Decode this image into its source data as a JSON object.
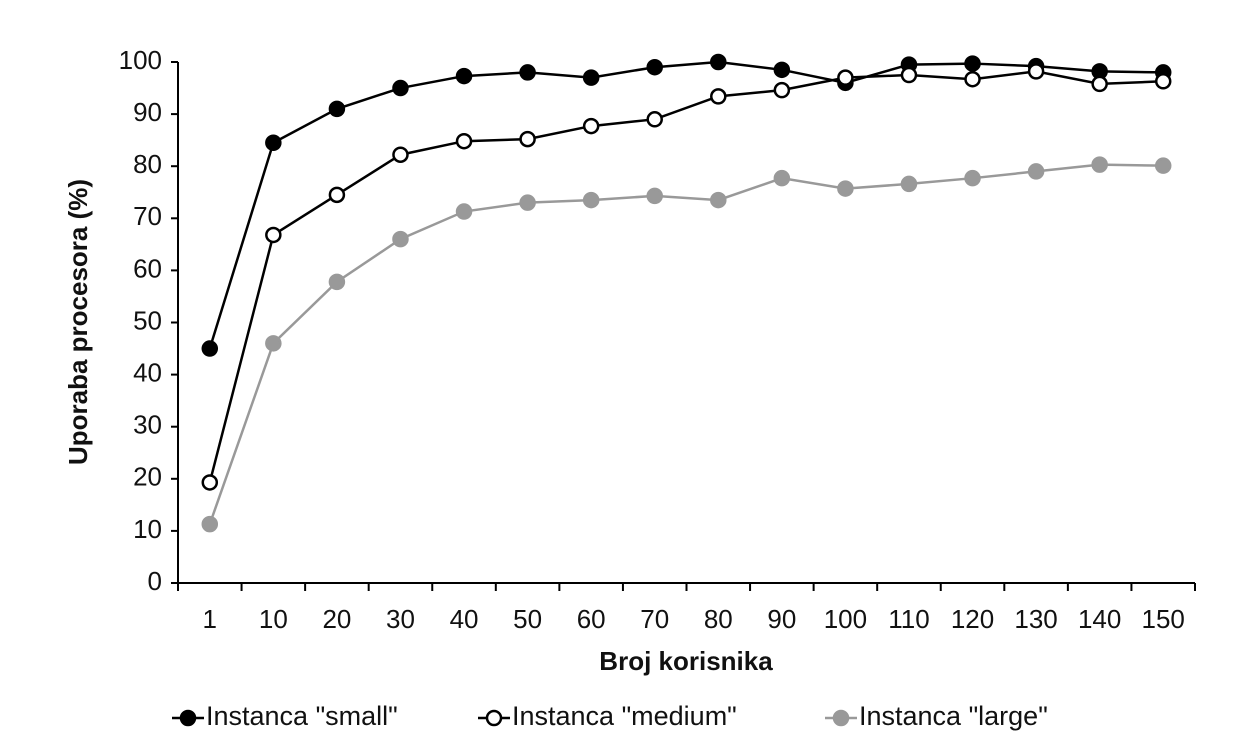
{
  "chart_data": {
    "type": "line",
    "x_label": "Broj korisnika",
    "y_label": "Uporaba procesora (%)",
    "categories": [
      "1",
      "10",
      "20",
      "30",
      "40",
      "50",
      "60",
      "70",
      "80",
      "90",
      "100",
      "110",
      "120",
      "130",
      "140",
      "150"
    ],
    "series": [
      {
        "name": "Instanca \"small\"",
        "color": "#000000",
        "marker_fill": "#000000",
        "values": [
          45,
          84.5,
          91,
          95,
          97.3,
          98,
          97,
          99,
          100,
          98.5,
          96,
          99.5,
          99.7,
          99.2,
          98.2,
          98
        ]
      },
      {
        "name": "Instanca \"medium\"",
        "color": "#000000",
        "marker_fill": "#ffffff",
        "values": [
          19.3,
          66.8,
          74.5,
          82.2,
          84.8,
          85.2,
          87.7,
          89,
          93.4,
          94.6,
          97,
          97.5,
          96.7,
          98.2,
          95.8,
          96.3
        ]
      },
      {
        "name": "Instanca \"large\"",
        "color": "#999999",
        "marker_fill": "#999999",
        "values": [
          11.3,
          46,
          57.8,
          66,
          71.3,
          73,
          73.5,
          74.3,
          73.5,
          77.7,
          75.7,
          76.6,
          77.7,
          79,
          80.3,
          80.1
        ]
      }
    ],
    "ylim": [
      0,
      100
    ],
    "yticks": [
      0,
      10,
      20,
      30,
      40,
      50,
      60,
      70,
      80,
      90,
      100
    ],
    "grid": false,
    "legend": "bottom"
  }
}
